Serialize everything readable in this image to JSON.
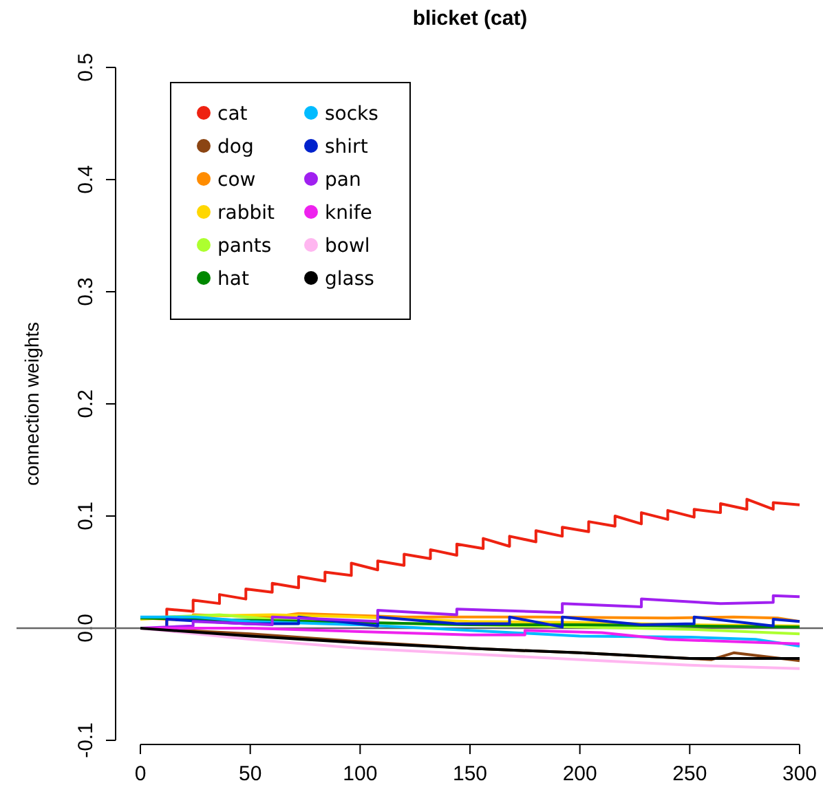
{
  "chart_data": {
    "type": "line",
    "title": "blicket (cat)",
    "ylabel": "connection weights",
    "xlim": [
      0,
      300
    ],
    "ylim": [
      -0.1,
      0.5
    ],
    "xticks": [
      0,
      50,
      100,
      150,
      200,
      250,
      300
    ],
    "yticks": [
      -0.1,
      {
        "value": 0,
        "label": "0.0"
      },
      0.1,
      0.2,
      0.3,
      0.4,
      0.5
    ],
    "legend": "top left",
    "grid": false,
    "line_style": "solid",
    "ref_lines": [
      {
        "axis": "y",
        "value": 0,
        "color": "#666666"
      }
    ],
    "series": [
      {
        "name": "cat",
        "color": "#ee2211",
        "x": [
          0,
          12,
          12,
          24,
          24,
          36,
          36,
          48,
          48,
          60,
          60,
          72,
          72,
          84,
          84,
          96,
          96,
          108,
          108,
          120,
          120,
          132,
          132,
          144,
          144,
          156,
          156,
          168,
          168,
          180,
          180,
          192,
          192,
          204,
          204,
          216,
          216,
          228,
          228,
          240,
          240,
          252,
          252,
          264,
          264,
          276,
          276,
          288,
          288,
          300
        ],
        "values": [
          0,
          0,
          0.017,
          0.015,
          0.025,
          0.022,
          0.03,
          0.026,
          0.035,
          0.032,
          0.04,
          0.036,
          0.046,
          0.042,
          0.05,
          0.047,
          0.058,
          0.052,
          0.06,
          0.056,
          0.066,
          0.062,
          0.07,
          0.065,
          0.075,
          0.071,
          0.08,
          0.073,
          0.082,
          0.077,
          0.087,
          0.082,
          0.09,
          0.086,
          0.095,
          0.091,
          0.1,
          0.093,
          0.103,
          0.097,
          0.105,
          0.099,
          0.106,
          0.103,
          0.111,
          0.106,
          0.115,
          0.106,
          0.112,
          0.11
        ]
      },
      {
        "name": "dog",
        "color": "#8b4513",
        "x": [
          0,
          50,
          100,
          150,
          200,
          240,
          260,
          270,
          300
        ],
        "values": [
          0,
          -0.005,
          -0.012,
          -0.018,
          -0.022,
          -0.026,
          -0.028,
          -0.022,
          -0.029
        ]
      },
      {
        "name": "cow",
        "color": "#ff8c00",
        "x": [
          0,
          24,
          24,
          60,
          72,
          120,
          180,
          240,
          270,
          290,
          300
        ],
        "values": [
          0.009,
          0.007,
          0.012,
          0.01,
          0.013,
          0.01,
          0.01,
          0.009,
          0.01,
          0.009,
          0.006
        ]
      },
      {
        "name": "rabbit",
        "color": "#ffd700",
        "x": [
          0,
          30,
          60,
          100,
          150,
          200,
          250,
          300
        ],
        "values": [
          0.008,
          0.011,
          0.012,
          0.01,
          0.006,
          0.005,
          0.003,
          0.002
        ]
      },
      {
        "name": "pants",
        "color": "#adff2f",
        "x": [
          0,
          36,
          60,
          100,
          150,
          200,
          250,
          300
        ],
        "values": [
          0.009,
          0.012,
          0.008,
          0.005,
          0.003,
          0.001,
          -0.001,
          -0.005
        ]
      },
      {
        "name": "hat",
        "color": "#008800",
        "x": [
          0,
          50,
          100,
          150,
          200,
          250,
          300
        ],
        "values": [
          0.009,
          0.007,
          0.005,
          0.003,
          0.003,
          0.002,
          0.001
        ]
      },
      {
        "name": "socks",
        "color": "#00bbff",
        "x": [
          0,
          25,
          50,
          100,
          150,
          200,
          250,
          280,
          300
        ],
        "values": [
          0.01,
          0.01,
          0.006,
          0.003,
          -0.002,
          -0.007,
          -0.008,
          -0.01,
          -0.016
        ]
      },
      {
        "name": "shirt",
        "color": "#0022cc",
        "x": [
          0,
          12,
          12,
          48,
          72,
          72,
          108,
          108,
          144,
          168,
          168,
          192,
          192,
          228,
          252,
          252,
          288,
          288,
          300
        ],
        "values": [
          0,
          0,
          0.008,
          0.004,
          0.004,
          0.01,
          0.002,
          0.01,
          0.004,
          0.004,
          0.01,
          0.001,
          0.01,
          0.003,
          0.004,
          0.01,
          0.002,
          0.008,
          0.006
        ]
      },
      {
        "name": "pan",
        "color": "#a020f0",
        "x": [
          0,
          24,
          24,
          60,
          60,
          108,
          108,
          144,
          144,
          192,
          192,
          228,
          228,
          264,
          288,
          288,
          300
        ],
        "values": [
          0,
          0.002,
          0.006,
          0.003,
          0.01,
          0.006,
          0.016,
          0.012,
          0.017,
          0.014,
          0.022,
          0.019,
          0.026,
          0.022,
          0.023,
          0.029,
          0.028
        ]
      },
      {
        "name": "knife",
        "color": "#ee22ee",
        "x": [
          0,
          50,
          100,
          150,
          175,
          175,
          210,
          240,
          270,
          300
        ],
        "values": [
          0,
          0,
          -0.003,
          -0.006,
          -0.006,
          -0.002,
          -0.004,
          -0.01,
          -0.012,
          -0.014
        ]
      },
      {
        "name": "bowl",
        "color": "#ffb6f0",
        "x": [
          0,
          50,
          100,
          150,
          200,
          250,
          300
        ],
        "values": [
          0,
          -0.01,
          -0.018,
          -0.023,
          -0.028,
          -0.033,
          -0.036
        ]
      },
      {
        "name": "glass",
        "color": "#000000",
        "x": [
          0,
          50,
          100,
          150,
          200,
          250,
          300
        ],
        "values": [
          0,
          -0.007,
          -0.013,
          -0.018,
          -0.022,
          -0.027,
          -0.027
        ]
      }
    ]
  }
}
